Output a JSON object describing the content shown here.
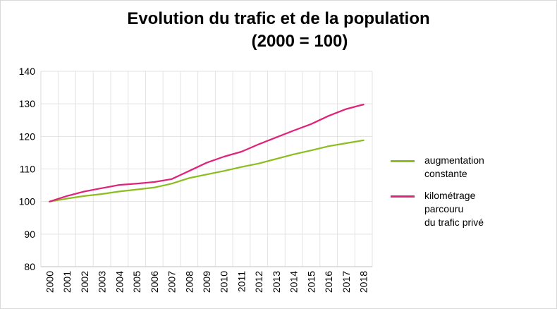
{
  "chart_data": {
    "type": "line",
    "title": [
      "Evolution du trafic et de la population",
      "(2000 = 100)"
    ],
    "categories": [
      "2000",
      "2001",
      "2002",
      "2003",
      "2004",
      "2005",
      "2006",
      "2007",
      "2008",
      "2009",
      "2010",
      "2011",
      "2012",
      "2013",
      "2014",
      "2015",
      "2016",
      "2017",
      "2018"
    ],
    "ylim": [
      80,
      140
    ],
    "yticks": [
      80,
      90,
      100,
      110,
      120,
      130,
      140
    ],
    "grid": true,
    "legend_position": "right",
    "series": [
      {
        "name": "augmentation\nconstante",
        "color": "#8cbd1f",
        "values": [
          100,
          100.9,
          101.7,
          102.3,
          103.1,
          103.7,
          104.3,
          105.5,
          107.2,
          108.3,
          109.4,
          110.6,
          111.7,
          113.1,
          114.5,
          115.7,
          117.0,
          117.9,
          118.8
        ]
      },
      {
        "name": "kilométrage\nparcouru\ndu trafic privé",
        "color": "#e0237a",
        "values": [
          100,
          101.7,
          103.1,
          104.1,
          105.1,
          105.5,
          106.0,
          106.9,
          109.4,
          111.9,
          113.8,
          115.3,
          117.6,
          119.7,
          121.8,
          123.8,
          126.3,
          128.4,
          129.8
        ]
      }
    ]
  }
}
